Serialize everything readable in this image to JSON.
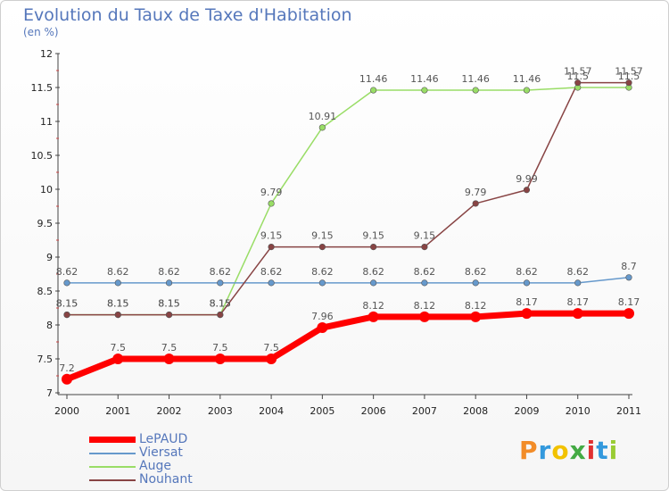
{
  "header": {
    "title": "Evolution du Taux de Taxe d'Habitation",
    "unit": "(en %)"
  },
  "logo": {
    "text": "Proxiti",
    "letters": [
      "P",
      "r",
      "o",
      "x",
      "i",
      "t",
      "i"
    ],
    "colors": [
      "#f28c28",
      "#3399dd",
      "#f2c200",
      "#44aa44",
      "#e03030",
      "#3399dd",
      "#99cc33"
    ]
  },
  "chart_data": {
    "type": "line",
    "title": "Evolution du Taux de Taxe d'Habitation",
    "ylabel": "(en %)",
    "xlabel": "",
    "ylim": [
      7,
      12
    ],
    "yticks": [
      "7",
      "7.5",
      "8",
      "8.5",
      "9",
      "9.5",
      "10",
      "10.5",
      "11",
      "11.5",
      "12"
    ],
    "categories": [
      "2000",
      "2001",
      "2002",
      "2003",
      "2004",
      "2005",
      "2006",
      "2007",
      "2008",
      "2009",
      "2010",
      "2011"
    ],
    "grid": false,
    "legend": "bottom-left",
    "series": [
      {
        "name": "LePAUD",
        "color": "#ff0000",
        "values": [
          7.2,
          7.5,
          7.5,
          7.5,
          7.5,
          7.96,
          8.12,
          8.12,
          8.12,
          8.17,
          8.17,
          8.17
        ],
        "labels": [
          "7.2",
          "7.5",
          "7.5",
          "7.5",
          "7.5",
          "7.96",
          "8.12",
          "8.12",
          "8.12",
          "8.17",
          "8.17",
          "8.17"
        ]
      },
      {
        "name": "Viersat",
        "color": "#6699cc",
        "values": [
          8.62,
          8.62,
          8.62,
          8.62,
          8.62,
          8.62,
          8.62,
          8.62,
          8.62,
          8.62,
          8.62,
          8.7
        ],
        "labels": [
          "8.62",
          "8.62",
          "8.62",
          "8.62",
          "8.62",
          "8.62",
          "8.62",
          "8.62",
          "8.62",
          "8.62",
          "8.62",
          "8.7"
        ]
      },
      {
        "name": "Auge",
        "color": "#99dd66",
        "values": [
          8.15,
          8.15,
          8.15,
          8.15,
          9.79,
          10.91,
          11.46,
          11.46,
          11.46,
          11.46,
          11.5,
          11.5
        ],
        "labels": [
          "8.15",
          "8.15",
          "8.15",
          "8.15",
          "9.79",
          "10.91",
          "11.46",
          "11.46",
          "11.46",
          "11.46",
          "11.5",
          "11.5"
        ]
      },
      {
        "name": "Nouhant",
        "color": "#884444",
        "values": [
          8.15,
          8.15,
          8.15,
          8.15,
          9.15,
          9.15,
          9.15,
          9.15,
          9.79,
          9.99,
          11.57,
          11.57
        ],
        "labels": [
          "8.15",
          "8.15",
          "8.15",
          "8.15",
          "9.15",
          "9.15",
          "9.15",
          "9.15",
          "9.79",
          "9.99",
          "11.57",
          "11.57"
        ]
      }
    ]
  }
}
